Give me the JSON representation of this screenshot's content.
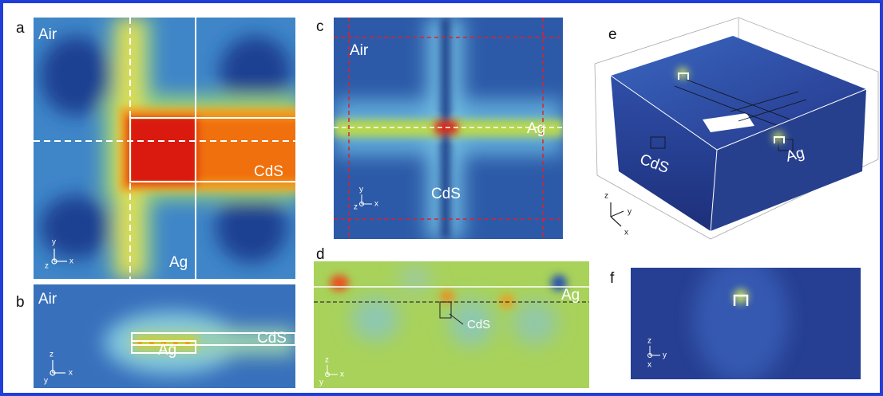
{
  "panels": [
    {
      "label": "a",
      "annotations": [
        "Air",
        "CdS",
        "Ag"
      ],
      "axes": [
        "y",
        "z",
        "x"
      ]
    },
    {
      "label": "b",
      "annotations": [
        "Air",
        "CdS",
        "Ag"
      ],
      "axes": [
        "z",
        "y",
        "x"
      ]
    },
    {
      "label": "c",
      "annotations": [
        "Air",
        "Ag",
        "CdS"
      ],
      "axes": [
        "y",
        "z",
        "x"
      ]
    },
    {
      "label": "d",
      "annotations": [
        "Ag",
        "CdS"
      ],
      "axes": [
        "z",
        "y",
        "x"
      ]
    },
    {
      "label": "e",
      "annotations": [
        "CdS",
        "Ag"
      ],
      "axes": [
        "z",
        "y",
        "x"
      ]
    },
    {
      "label": "f",
      "axes": [
        "z",
        "x",
        "y"
      ]
    }
  ]
}
